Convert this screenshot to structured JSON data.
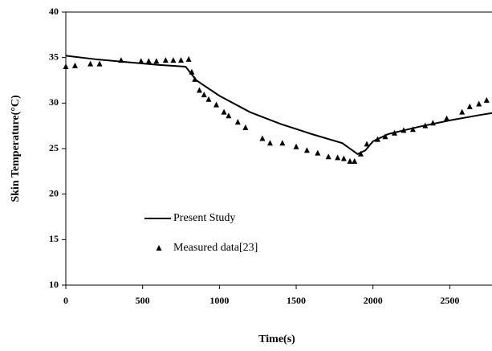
{
  "chart_data": {
    "type": "line",
    "xlabel": "Time(s)",
    "ylabel": "Skin Temperature(°C)",
    "xlim": [
      0,
      2775
    ],
    "ylim": [
      10,
      40
    ],
    "xticks": [
      0,
      500,
      1000,
      1500,
      2000,
      2500
    ],
    "yticks": [
      10,
      15,
      20,
      25,
      30,
      35,
      40
    ],
    "legend": "center-left",
    "series": [
      {
        "name": "Present Study",
        "style": "line",
        "color": "#000000",
        "x": [
          0,
          200,
          400,
          600,
          780,
          850,
          1000,
          1200,
          1400,
          1600,
          1800,
          1900,
          1950,
          2000,
          2100,
          2300,
          2500,
          2700,
          2775
        ],
        "values": [
          35.2,
          34.8,
          34.5,
          34.2,
          34.0,
          32.5,
          30.8,
          29.0,
          27.7,
          26.6,
          25.6,
          24.4,
          24.8,
          25.8,
          26.6,
          27.4,
          28.1,
          28.7,
          28.9
        ]
      },
      {
        "name": "Measured data[23]",
        "style": "triangle",
        "color": "#000000",
        "x": [
          0,
          60,
          160,
          220,
          360,
          490,
          540,
          590,
          650,
          700,
          750,
          800,
          820,
          840,
          870,
          900,
          930,
          980,
          1030,
          1060,
          1120,
          1170,
          1280,
          1330,
          1410,
          1500,
          1570,
          1640,
          1710,
          1770,
          1810,
          1850,
          1880,
          1920,
          1960,
          2030,
          2080,
          2140,
          2200,
          2260,
          2340,
          2390,
          2480,
          2580,
          2630,
          2690,
          2740
        ],
        "values": [
          34.0,
          34.1,
          34.3,
          34.3,
          34.7,
          34.6,
          34.6,
          34.6,
          34.7,
          34.7,
          34.7,
          34.8,
          33.4,
          32.6,
          31.4,
          30.9,
          30.4,
          29.8,
          29.0,
          28.6,
          27.9,
          27.3,
          26.1,
          25.6,
          25.6,
          25.2,
          24.8,
          24.5,
          24.1,
          24.0,
          23.9,
          23.6,
          23.6,
          24.4,
          25.5,
          26.0,
          26.3,
          26.7,
          27.0,
          27.1,
          27.5,
          27.8,
          28.3,
          29.0,
          29.6,
          29.9,
          30.3
        ]
      }
    ]
  }
}
